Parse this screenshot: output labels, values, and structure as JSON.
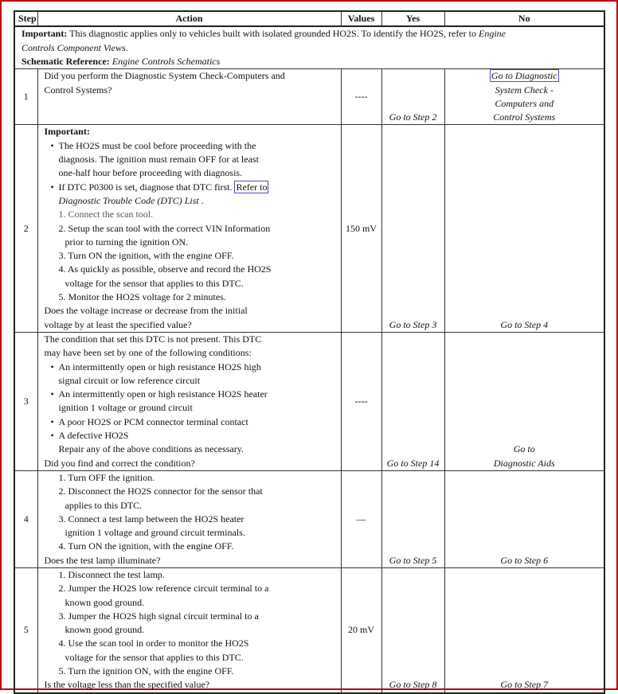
{
  "header": {
    "step": "Step",
    "action": "Action",
    "values": "Values",
    "yes": "Yes",
    "no": "No"
  },
  "intro": [
    [
      {
        "t": "Important:",
        "s": "b"
      },
      {
        "t": " This diagnostic applies only to vehicles built with isolated grounded HO2S. To identify the HO2S, refer to "
      },
      {
        "t": "Engine",
        "s": "i"
      }
    ],
    [
      {
        "t": "Controls Component Views",
        "s": "i"
      },
      {
        "t": "."
      }
    ],
    [
      {
        "t": "Schematic Reference:",
        "s": "b"
      },
      {
        "t": " "
      },
      {
        "t": "Engine Controls Schematics",
        "s": "i"
      }
    ]
  ],
  "rows": [
    {
      "step": "1",
      "value": "----",
      "yes": [
        "Go to Step 2"
      ],
      "no": [
        {
          "t": "Go to Diagnostic",
          "s": "box"
        },
        {
          "t": "System Check -"
        },
        {
          "t": "Computers and"
        },
        {
          "t": "Control Systems"
        }
      ],
      "lines": [
        {
          "k": "p",
          "seg": [
            {
              "t": "Did you perform the Diagnostic System Check-Computers and"
            }
          ]
        },
        {
          "k": "p",
          "seg": [
            {
              "t": "Control Systems?"
            }
          ]
        }
      ]
    },
    {
      "step": "2",
      "value": "150 mV",
      "yes": [
        "Go to Step 3"
      ],
      "no": [
        {
          "t": "Go to Step 4"
        }
      ],
      "lines": [
        {
          "k": "p",
          "seg": [
            {
              "t": "Important:",
              "s": "b"
            }
          ]
        },
        {
          "k": "b",
          "seg": [
            {
              "t": "The HO2S must be cool before proceeding with the"
            }
          ]
        },
        {
          "k": "bc",
          "seg": [
            {
              "t": "diagnosis. The ignition must remain OFF for at least"
            }
          ]
        },
        {
          "k": "bc",
          "seg": [
            {
              "t": "one-half hour before proceeding with diagnosis."
            }
          ]
        },
        {
          "k": "b",
          "seg": [
            {
              "t": "If DTC P0300 is set, diagnose that DTC first. "
            },
            {
              "t": "Refer to",
              "s": "box"
            }
          ]
        },
        {
          "k": "bc",
          "seg": [
            {
              "t": "Diagnostic Trouble Code (DTC) List",
              "s": "i"
            },
            {
              "t": " ."
            }
          ]
        },
        {
          "k": "n",
          "seg": [
            {
              "t": "1. Connect the scan tool.",
              "s": "gray"
            }
          ]
        },
        {
          "k": "n",
          "seg": [
            {
              "t": "2. Setup the scan tool with the correct VIN Information"
            }
          ]
        },
        {
          "k": "nc",
          "seg": [
            {
              "t": "prior to turning the ignition ON."
            }
          ]
        },
        {
          "k": "n",
          "seg": [
            {
              "t": "3. Turn ON the ignition, with the engine OFF."
            }
          ]
        },
        {
          "k": "n",
          "seg": [
            {
              "t": "4. As quickly as possible, observe and record the HO2S"
            }
          ]
        },
        {
          "k": "nc",
          "seg": [
            {
              "t": "voltage for the sensor that applies to this DTC."
            }
          ]
        },
        {
          "k": "n",
          "seg": [
            {
              "t": "5. Monitor the HO2S voltage for 2 minutes."
            }
          ]
        },
        {
          "k": "p",
          "seg": [
            {
              "t": "Does the voltage increase or decrease from the initial"
            }
          ]
        },
        {
          "k": "p",
          "seg": [
            {
              "t": "voltage by at least the specified value?"
            }
          ]
        }
      ]
    },
    {
      "step": "3",
      "value": "----",
      "yes": [
        "Go to Step 14"
      ],
      "no": [
        {
          "t": "Go to"
        },
        {
          "t": "Diagnostic Aids"
        }
      ],
      "lines": [
        {
          "k": "p",
          "seg": [
            {
              "t": "The condition that set this DTC is not present. This DTC"
            }
          ]
        },
        {
          "k": "p",
          "seg": [
            {
              "t": "may have been set by one of the following conditions:"
            }
          ]
        },
        {
          "k": "b",
          "seg": [
            {
              "t": "An intermittently open or high resistance HO2S high"
            }
          ]
        },
        {
          "k": "bc",
          "seg": [
            {
              "t": "signal circuit or low reference circuit"
            }
          ]
        },
        {
          "k": "b",
          "seg": [
            {
              "t": "An intermittently open or high resistance HO2S heater"
            }
          ]
        },
        {
          "k": "bc",
          "seg": [
            {
              "t": "ignition 1 voltage or ground circuit"
            }
          ]
        },
        {
          "k": "b",
          "seg": [
            {
              "t": "A poor HO2S or PCM connector terminal contact"
            }
          ]
        },
        {
          "k": "b",
          "seg": [
            {
              "t": "A defective HO2S"
            }
          ]
        },
        {
          "k": "bc",
          "seg": [
            {
              "t": "Repair any of the above conditions as necessary."
            }
          ]
        },
        {
          "k": "p",
          "seg": [
            {
              "t": "Did you find and correct the condition?"
            }
          ]
        }
      ]
    },
    {
      "step": "4",
      "value": "—",
      "yes": [
        "Go to Step 5"
      ],
      "no": [
        {
          "t": "Go to Step 6"
        }
      ],
      "lines": [
        {
          "k": "n",
          "seg": [
            {
              "t": "1. Turn OFF the ignition."
            }
          ]
        },
        {
          "k": "n",
          "seg": [
            {
              "t": "2. Disconnect the HO2S connector for the sensor that"
            }
          ]
        },
        {
          "k": "nc",
          "seg": [
            {
              "t": "applies to this DTC."
            }
          ]
        },
        {
          "k": "n",
          "seg": [
            {
              "t": "3. Connect a test lamp between the HO2S heater"
            }
          ]
        },
        {
          "k": "nc",
          "seg": [
            {
              "t": "ignition 1 voltage and ground circuit terminals."
            }
          ]
        },
        {
          "k": "n",
          "seg": [
            {
              "t": "4. Turn ON the ignition, with the engine OFF."
            }
          ]
        },
        {
          "k": "p",
          "seg": [
            {
              "t": "Does the test lamp illuminate?"
            }
          ]
        }
      ]
    },
    {
      "step": "5",
      "value": "20 mV",
      "yes": [
        "Go to Step 8"
      ],
      "no": [
        {
          "t": "Go to Step 7"
        }
      ],
      "lines": [
        {
          "k": "n",
          "seg": [
            {
              "t": "1. Disconnect the test lamp."
            }
          ]
        },
        {
          "k": "n",
          "seg": [
            {
              "t": "2. Jumper the HO2S low reference circuit terminal to a"
            }
          ]
        },
        {
          "k": "nc",
          "seg": [
            {
              "t": "known good ground."
            }
          ]
        },
        {
          "k": "n",
          "seg": [
            {
              "t": "3. Jumper the HO2S high signal circuit terminal to a"
            }
          ]
        },
        {
          "k": "nc",
          "seg": [
            {
              "t": "known good ground."
            }
          ]
        },
        {
          "k": "n",
          "seg": [
            {
              "t": "4. Use the scan tool in order to monitor the HO2S"
            }
          ]
        },
        {
          "k": "nc",
          "seg": [
            {
              "t": "voltage for the sensor that applies to this DTC."
            }
          ]
        },
        {
          "k": "n",
          "seg": [
            {
              "t": "5. Turn the ignition ON, with the engine OFF."
            }
          ]
        },
        {
          "k": "p",
          "seg": [
            {
              "t": "Is the voltage less than the specified value?"
            }
          ]
        }
      ]
    }
  ]
}
